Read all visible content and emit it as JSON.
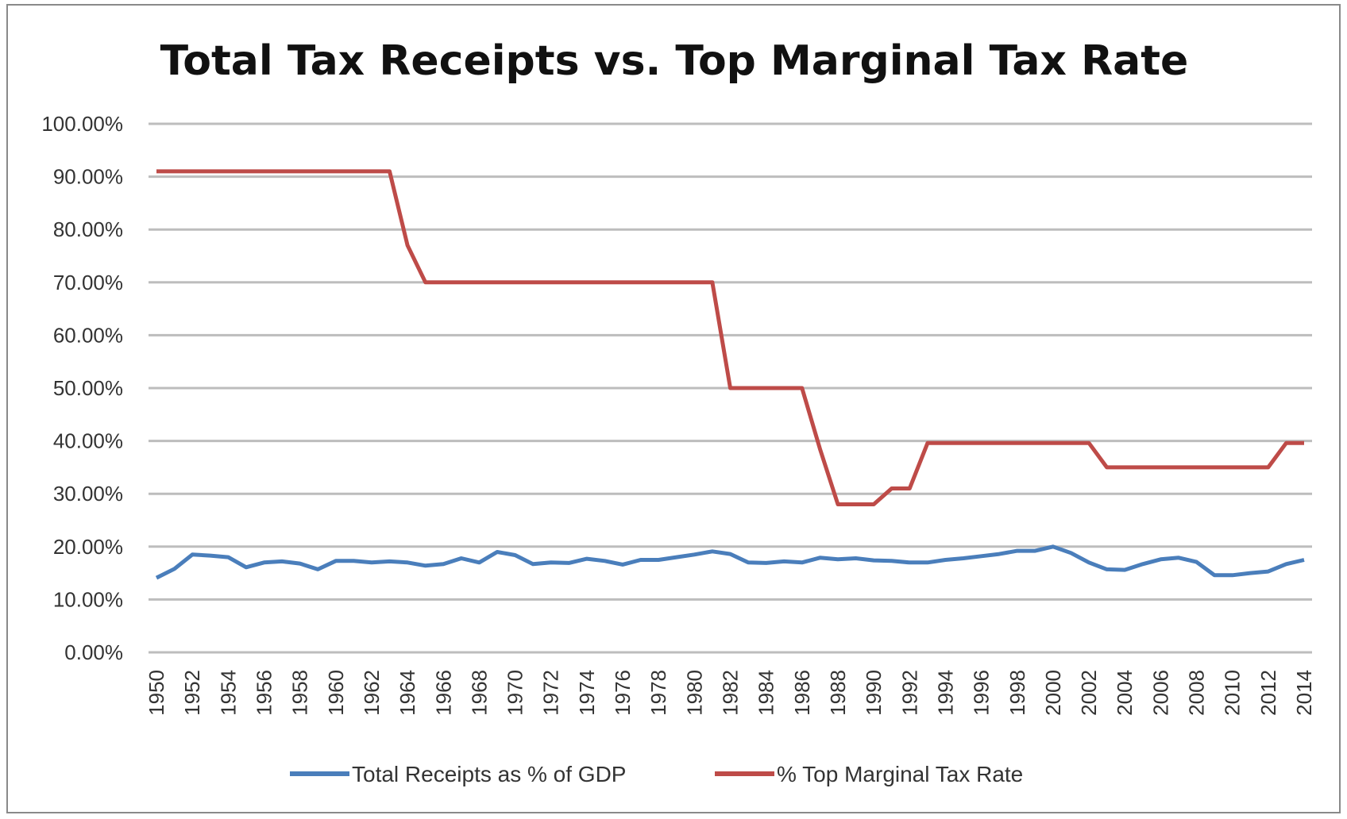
{
  "chart_data": {
    "type": "line",
    "title": "Total Tax Receipts vs. Top Marginal Tax Rate",
    "xlabel": "",
    "ylabel": "",
    "ylim": [
      0,
      100
    ],
    "y_ticks": [
      "0.00%",
      "10.00%",
      "20.00%",
      "30.00%",
      "40.00%",
      "50.00%",
      "60.00%",
      "70.00%",
      "80.00%",
      "90.00%",
      "100.00%"
    ],
    "x_tick_labels": [
      "1950",
      "1952",
      "1954",
      "1956",
      "1958",
      "1960",
      "1962",
      "1964",
      "1966",
      "1968",
      "1970",
      "1972",
      "1974",
      "1976",
      "1978",
      "1980",
      "1982",
      "1984",
      "1986",
      "1988",
      "1990",
      "1992",
      "1994",
      "1996",
      "1998",
      "2000",
      "2002",
      "2004",
      "2006",
      "2008",
      "2010",
      "2012",
      "2014"
    ],
    "grid": true,
    "legend_position": "bottom",
    "x": [
      1950,
      1951,
      1952,
      1953,
      1954,
      1955,
      1956,
      1957,
      1958,
      1959,
      1960,
      1961,
      1962,
      1963,
      1964,
      1965,
      1966,
      1967,
      1968,
      1969,
      1970,
      1971,
      1972,
      1973,
      1974,
      1975,
      1976,
      1977,
      1978,
      1979,
      1980,
      1981,
      1982,
      1983,
      1984,
      1985,
      1986,
      1987,
      1988,
      1989,
      1990,
      1991,
      1992,
      1993,
      1994,
      1995,
      1996,
      1997,
      1998,
      1999,
      2000,
      2001,
      2002,
      2003,
      2004,
      2005,
      2006,
      2007,
      2008,
      2009,
      2010,
      2011,
      2012,
      2013,
      2014
    ],
    "series": [
      {
        "name": "Total Receipts as % of GDP",
        "color": "#4a7ebb",
        "values": [
          14.1,
          15.8,
          18.5,
          18.3,
          18.0,
          16.1,
          17.0,
          17.2,
          16.8,
          15.7,
          17.3,
          17.3,
          17.0,
          17.2,
          17.0,
          16.4,
          16.7,
          17.8,
          17.0,
          19.0,
          18.4,
          16.7,
          17.0,
          16.9,
          17.7,
          17.3,
          16.6,
          17.5,
          17.5,
          18.0,
          18.5,
          19.1,
          18.6,
          17.0,
          16.9,
          17.2,
          17.0,
          17.9,
          17.6,
          17.8,
          17.4,
          17.3,
          17.0,
          17.0,
          17.5,
          17.8,
          18.2,
          18.6,
          19.2,
          19.2,
          20.0,
          18.8,
          17.0,
          15.7,
          15.6,
          16.7,
          17.6,
          17.9,
          17.1,
          14.6,
          14.6,
          15.0,
          15.3,
          16.7,
          17.5
        ]
      },
      {
        "name": "% Top Marginal Tax Rate",
        "color": "#be4b48",
        "values": [
          91,
          91,
          91,
          91,
          91,
          91,
          91,
          91,
          91,
          91,
          91,
          91,
          91,
          91,
          77,
          70,
          70,
          70,
          70,
          70,
          70,
          70,
          70,
          70,
          70,
          70,
          70,
          70,
          70,
          70,
          70,
          70,
          50,
          50,
          50,
          50,
          50,
          38.5,
          28,
          28,
          28,
          31,
          31,
          39.6,
          39.6,
          39.6,
          39.6,
          39.6,
          39.6,
          39.6,
          39.6,
          39.6,
          39.6,
          35,
          35,
          35,
          35,
          35,
          35,
          35,
          35,
          35,
          35,
          39.6,
          39.6
        ]
      }
    ]
  }
}
